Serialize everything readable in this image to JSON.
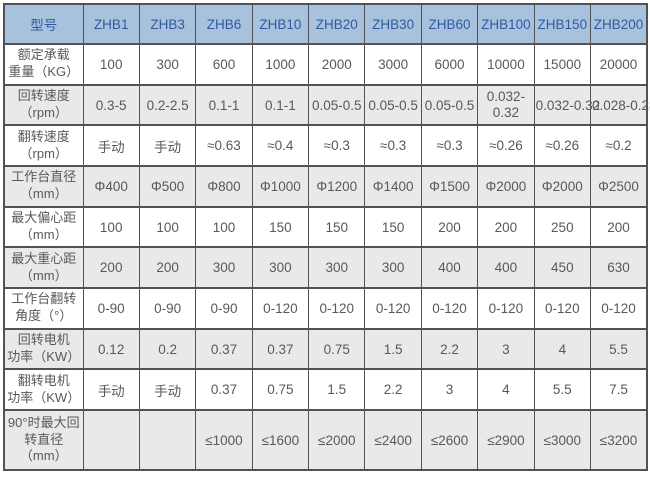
{
  "colors": {
    "header_bg": "#a8c1dc",
    "header_text": "#2f5b9e",
    "row_bg": "#ffffff",
    "row_alt_bg": "#e9e9e9",
    "border": "#515256",
    "body_text": "#58595b"
  },
  "table": {
    "corner_label": "型号",
    "models": [
      "ZHB1",
      "ZHB3",
      "ZHB6",
      "ZHB10",
      "ZHB20",
      "ZHB30",
      "ZHB60",
      "ZHB100",
      "ZHB150",
      "ZHB200"
    ],
    "rows": [
      {
        "label_lines": [
          "额定承载",
          "重量（KG）"
        ],
        "values": [
          "100",
          "300",
          "600",
          "1000",
          "2000",
          "3000",
          "6000",
          "10000",
          "15000",
          "20000"
        ]
      },
      {
        "label_lines": [
          "回转速度",
          "（rpm）"
        ],
        "values": [
          "0.3-5",
          "0.2-2.5",
          "0.1-1",
          "0.1-1",
          "0.05-0.5",
          "0.05-0.5",
          "0.05-0.5",
          "0.032-0.32",
          "0.032-0.32",
          "0.028-0.28"
        ]
      },
      {
        "label_lines": [
          "翻转速度",
          "（rpm）"
        ],
        "values": [
          "手动",
          "手动",
          "≈0.63",
          "≈0.4",
          "≈0.3",
          "≈0.3",
          "≈0.3",
          "≈0.26",
          "≈0.26",
          "≈0.2"
        ]
      },
      {
        "label_lines": [
          "工作台直径",
          "（mm）"
        ],
        "values": [
          "Φ400",
          "Φ500",
          "Φ800",
          "Φ1000",
          "Φ1200",
          "Φ1400",
          "Φ1500",
          "Φ2000",
          "Φ2000",
          "Φ2500"
        ]
      },
      {
        "label_lines": [
          "最大偏心距",
          "（mm）"
        ],
        "values": [
          "100",
          "100",
          "100",
          "150",
          "150",
          "150",
          "200",
          "200",
          "250",
          "200"
        ]
      },
      {
        "label_lines": [
          "最大重心距",
          "（mm）"
        ],
        "values": [
          "200",
          "200",
          "300",
          "300",
          "300",
          "300",
          "400",
          "400",
          "450",
          "630"
        ]
      },
      {
        "label_lines": [
          "工作台翻转",
          "角度（°）"
        ],
        "values": [
          "0-90",
          "0-90",
          "0-90",
          "0-120",
          "0-120",
          "0-120",
          "0-120",
          "0-120",
          "0-120",
          "0-120"
        ]
      },
      {
        "label_lines": [
          "回转电机",
          "功率（KW）"
        ],
        "values": [
          "0.12",
          "0.2",
          "0.37",
          "0.37",
          "0.75",
          "1.5",
          "2.2",
          "3",
          "4",
          "5.5"
        ]
      },
      {
        "label_lines": [
          "翻转电机",
          "功率（KW）"
        ],
        "values": [
          "手动",
          "手动",
          "0.37",
          "0.75",
          "1.5",
          "2.2",
          "3",
          "4",
          "5.5",
          "7.5"
        ]
      },
      {
        "label_lines": [
          "90°时最大回",
          "转直径（mm）"
        ],
        "values": [
          "",
          "",
          "≤1000",
          "≤1600",
          "≤2000",
          "≤2400",
          "≤2600",
          "≤2900",
          "≤3000",
          "≤3200"
        ]
      }
    ]
  }
}
